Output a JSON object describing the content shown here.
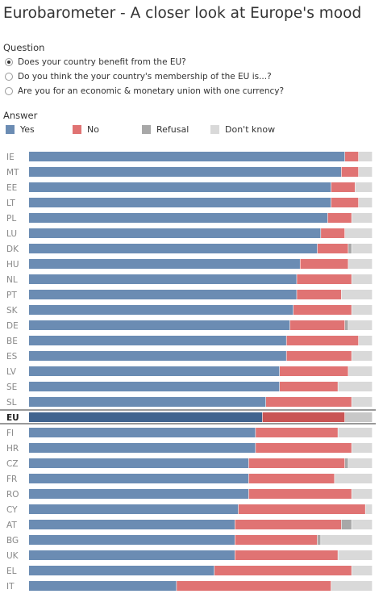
{
  "title": "Eurobarometer - A closer look at Europe's mood",
  "question": {
    "label": "Question",
    "options": [
      {
        "label": "Does your country benefit from the EU?",
        "selected": true
      },
      {
        "label": "Do you think the your country's membership of the EU is...?",
        "selected": false
      },
      {
        "label": "Are you for an economic & monetary union with one currency?",
        "selected": false
      }
    ]
  },
  "answer": {
    "label": "Answer",
    "legend": [
      {
        "label": "Yes",
        "color": "#6b8cb3"
      },
      {
        "label": "No",
        "color": "#e07373"
      },
      {
        "label": "Refusal",
        "color": "#a8a8a8"
      },
      {
        "label": "Don't know",
        "color": "#d9d9d9"
      }
    ]
  },
  "chart_data": {
    "type": "bar",
    "orientation": "horizontal",
    "stacked": true,
    "normalized": true,
    "categories": [
      "IE",
      "MT",
      "EE",
      "LT",
      "PL",
      "LU",
      "DK",
      "HU",
      "NL",
      "PT",
      "SK",
      "DE",
      "BE",
      "ES",
      "LV",
      "SE",
      "SL",
      "EU",
      "FI",
      "HR",
      "CZ",
      "FR",
      "RO",
      "CY",
      "AT",
      "BG",
      "UK",
      "EL",
      "IT"
    ],
    "highlight": "EU",
    "series": [
      {
        "name": "Yes",
        "color": "#6b8cb3",
        "values": [
          92,
          91,
          88,
          88,
          87,
          85,
          84,
          79,
          78,
          78,
          77,
          76,
          75,
          75,
          73,
          73,
          69,
          68,
          66,
          66,
          64,
          64,
          64,
          61,
          60,
          60,
          60,
          54,
          43
        ]
      },
      {
        "name": "No",
        "color": "#e07373",
        "values": [
          4,
          5,
          7,
          8,
          7,
          7,
          9,
          14,
          16,
          13,
          17,
          16,
          21,
          19,
          20,
          17,
          25,
          24,
          24,
          28,
          28,
          25,
          30,
          37,
          31,
          24,
          30,
          40,
          45
        ]
      },
      {
        "name": "Refusal",
        "color": "#a8a8a8",
        "values": [
          0,
          0,
          0,
          0,
          0,
          0,
          1,
          0,
          0,
          0,
          0,
          1,
          0,
          0,
          0,
          0,
          0,
          0,
          0,
          0,
          1,
          0,
          0,
          0,
          3,
          1,
          0,
          0,
          0
        ]
      },
      {
        "name": "Don't know",
        "color": "#d9d9d9",
        "values": [
          4,
          4,
          5,
          4,
          6,
          8,
          6,
          7,
          6,
          9,
          6,
          7,
          4,
          6,
          7,
          10,
          6,
          8,
          10,
          6,
          7,
          11,
          6,
          2,
          6,
          15,
          10,
          6,
          12
        ]
      }
    ]
  }
}
